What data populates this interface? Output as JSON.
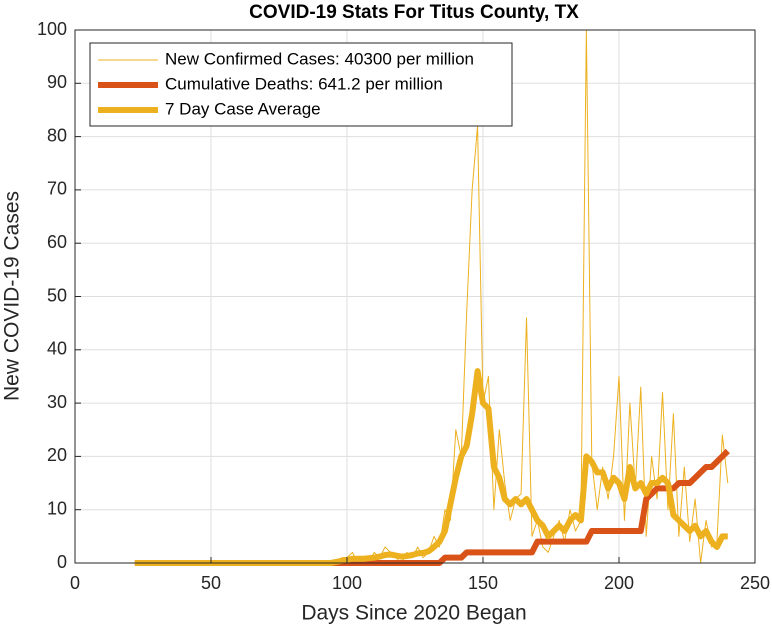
{
  "chart_data": {
    "type": "line",
    "title": "COVID-19 Stats For Titus County, TX",
    "xlabel": "Days Since 2020 Began",
    "ylabel": "New COVID-19 Cases",
    "x": [
      22,
      24,
      26,
      28,
      30,
      32,
      34,
      36,
      38,
      40,
      42,
      44,
      46,
      48,
      50,
      52,
      54,
      56,
      58,
      60,
      62,
      64,
      66,
      68,
      70,
      72,
      74,
      76,
      78,
      80,
      82,
      84,
      86,
      88,
      90,
      92,
      94,
      96,
      98,
      100,
      102,
      104,
      106,
      108,
      110,
      112,
      114,
      116,
      118,
      120,
      122,
      124,
      126,
      128,
      130,
      132,
      134,
      136,
      138,
      140,
      142,
      144,
      146,
      148,
      150,
      152,
      154,
      156,
      158,
      160,
      162,
      164,
      166,
      168,
      170,
      172,
      174,
      176,
      178,
      180,
      182,
      184,
      186,
      188,
      190,
      192,
      194,
      196,
      198,
      200,
      202,
      204,
      206,
      208,
      210,
      212,
      214,
      216,
      218,
      220,
      222,
      224,
      226,
      228,
      230,
      232,
      234,
      236,
      238,
      240
    ],
    "series": [
      {
        "name": "New Confirmed Cases: 40300 per million",
        "color": "#EDB120",
        "width": 1,
        "values": [
          0,
          0,
          0,
          0,
          0,
          0,
          0,
          0,
          0,
          0,
          0,
          0,
          0,
          0,
          0,
          0,
          0,
          0,
          0,
          0,
          0,
          0,
          0,
          0,
          0,
          0,
          0,
          0,
          0,
          0,
          0,
          0,
          0,
          0,
          0,
          0,
          0,
          0,
          1,
          1,
          2,
          0,
          1,
          0,
          2,
          1,
          3,
          2,
          1,
          0,
          2,
          1,
          3,
          1,
          2,
          5,
          3,
          10,
          8,
          25,
          20,
          47,
          70,
          82,
          30,
          35,
          10,
          25,
          15,
          8,
          12,
          13,
          46,
          5,
          8,
          3,
          2,
          5,
          8,
          4,
          10,
          6,
          8,
          100,
          19,
          10,
          18,
          12,
          20,
          35,
          8,
          30,
          14,
          33,
          5,
          20,
          12,
          32,
          10,
          28,
          5,
          18,
          4,
          12,
          0,
          8,
          3,
          4,
          24,
          15
        ]
      },
      {
        "name": "Cumulative Deaths: 641.2 per million",
        "color": "#D95319",
        "width": 6,
        "values": [
          0,
          0,
          0,
          0,
          0,
          0,
          0,
          0,
          0,
          0,
          0,
          0,
          0,
          0,
          0,
          0,
          0,
          0,
          0,
          0,
          0,
          0,
          0,
          0,
          0,
          0,
          0,
          0,
          0,
          0,
          0,
          0,
          0,
          0,
          0,
          0,
          0,
          0,
          0,
          0,
          0,
          0,
          0,
          0,
          0,
          0,
          0,
          0,
          0,
          0,
          0,
          0,
          0,
          0,
          0,
          0,
          0,
          1,
          1,
          1,
          1,
          2,
          2,
          2,
          2,
          2,
          2,
          2,
          2,
          2,
          2,
          2,
          2,
          2,
          4,
          4,
          4,
          4,
          4,
          4,
          4,
          4,
          4,
          4,
          6,
          6,
          6,
          6,
          6,
          6,
          6,
          6,
          6,
          6,
          12,
          13,
          14,
          14,
          14,
          14,
          15,
          15,
          15,
          16,
          17,
          18,
          18,
          19,
          20,
          21
        ]
      },
      {
        "name": "7 Day Case Average",
        "color": "#EDB120",
        "width": 6,
        "values": [
          0,
          0,
          0,
          0,
          0,
          0,
          0,
          0,
          0,
          0,
          0,
          0,
          0,
          0,
          0,
          0,
          0,
          0,
          0,
          0,
          0,
          0,
          0,
          0,
          0,
          0,
          0,
          0,
          0,
          0,
          0,
          0,
          0,
          0,
          0,
          0,
          0,
          0.2,
          0.4,
          0.6,
          0.8,
          0.8,
          0.8,
          0.9,
          1,
          1.2,
          1.5,
          1.6,
          1.4,
          1.2,
          1.3,
          1.5,
          1.8,
          1.9,
          2.2,
          3,
          4,
          6,
          11,
          16,
          20,
          22,
          28,
          36,
          30,
          29,
          18,
          16,
          12,
          11,
          12,
          11,
          12,
          10,
          8,
          7,
          5,
          6,
          7,
          6,
          8,
          9,
          8,
          20,
          19,
          17,
          17,
          14,
          16,
          15,
          12,
          18,
          14,
          15,
          13,
          15,
          15,
          16,
          15,
          9,
          8,
          7,
          6,
          7,
          5,
          6,
          4,
          3,
          5,
          5
        ]
      }
    ],
    "xlim": [
      0,
      250
    ],
    "xticks": [
      0,
      50,
      100,
      150,
      200,
      250
    ],
    "ylim": [
      0,
      100
    ],
    "yticks": [
      0,
      10,
      20,
      30,
      40,
      50,
      60,
      70,
      80,
      90,
      100
    ],
    "grid": true,
    "legend": "upper left"
  }
}
